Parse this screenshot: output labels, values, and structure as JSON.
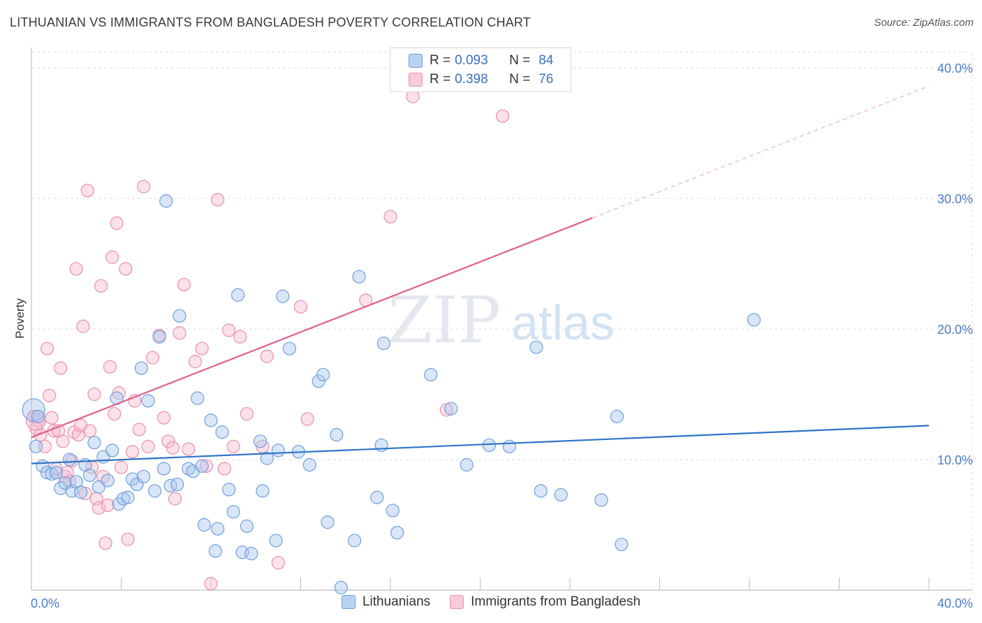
{
  "title": "LITHUANIAN VS IMMIGRANTS FROM BANGLADESH POVERTY CORRELATION CHART",
  "source": "Source: ZipAtlas.com",
  "watermark": {
    "zip": "ZIP",
    "atlas": "atlas"
  },
  "legend": {
    "rows": [
      {
        "r_label": "R =",
        "r_value": "0.093",
        "n_label": "N =",
        "n_value": "84"
      },
      {
        "r_label": "R =",
        "r_value": "0.398",
        "n_label": "N =",
        "n_value": "76"
      }
    ]
  },
  "bottom_legend": [
    "Lithuanians",
    "Immigrants from Bangladesh"
  ],
  "colors": {
    "blue_fill": "#a8c8ef",
    "blue_stroke": "#6f9fd8",
    "blue_line": "#2f74c8",
    "pink_fill": "#f6bcd0",
    "pink_stroke": "#e890ae",
    "pink_line": "#e0608a",
    "grid": "#dcdcdc",
    "tick_text": "#4a7cc9"
  },
  "chart_data": {
    "type": "scatter",
    "title": "LITHUANIAN VS IMMIGRANTS FROM BANGLADESH POVERTY CORRELATION CHART",
    "xlabel": "",
    "ylabel": "Poverty",
    "xlim": [
      0,
      40
    ],
    "ylim": [
      0,
      40
    ],
    "x_tick_labels": [
      "0.0%",
      "40.0%"
    ],
    "y_ticks": [
      10,
      20,
      30,
      40
    ],
    "y_tick_labels": [
      "10.0%",
      "20.0%",
      "30.0%",
      "40.0%"
    ],
    "grid": true,
    "series": [
      {
        "name": "Lithuanians",
        "r": 0.093,
        "n": 84,
        "trend": {
          "x0": 0,
          "y0": 9.7,
          "x1": 40,
          "y1": 12.6
        },
        "points": [
          [
            0.1,
            13.8
          ],
          [
            0.2,
            11.0
          ],
          [
            0.5,
            9.5
          ],
          [
            0.7,
            9.0
          ],
          [
            0.9,
            8.9
          ],
          [
            1.1,
            9.0
          ],
          [
            1.3,
            7.8
          ],
          [
            1.5,
            8.2
          ],
          [
            1.7,
            10.0
          ],
          [
            1.8,
            7.6
          ],
          [
            2.0,
            8.3
          ],
          [
            2.2,
            7.5
          ],
          [
            2.4,
            9.6
          ],
          [
            2.6,
            8.8
          ],
          [
            2.8,
            11.3
          ],
          [
            3.0,
            7.9
          ],
          [
            3.2,
            10.2
          ],
          [
            3.4,
            8.4
          ],
          [
            3.6,
            10.7
          ],
          [
            3.8,
            14.7
          ],
          [
            3.9,
            6.6
          ],
          [
            4.1,
            7.0
          ],
          [
            4.3,
            7.1
          ],
          [
            4.5,
            8.5
          ],
          [
            4.7,
            8.1
          ],
          [
            4.9,
            17.0
          ],
          [
            5.0,
            8.7
          ],
          [
            5.2,
            14.5
          ],
          [
            5.5,
            7.6
          ],
          [
            5.7,
            19.4
          ],
          [
            5.9,
            9.3
          ],
          [
            6.0,
            29.8
          ],
          [
            6.2,
            8.0
          ],
          [
            6.5,
            8.1
          ],
          [
            6.6,
            21.0
          ],
          [
            7.0,
            9.3
          ],
          [
            7.2,
            9.1
          ],
          [
            7.4,
            14.7
          ],
          [
            7.6,
            9.5
          ],
          [
            7.7,
            5.0
          ],
          [
            8.0,
            13.0
          ],
          [
            8.2,
            3.0
          ],
          [
            8.3,
            4.7
          ],
          [
            8.5,
            12.1
          ],
          [
            8.8,
            7.7
          ],
          [
            9.0,
            6.0
          ],
          [
            9.2,
            22.6
          ],
          [
            9.4,
            2.9
          ],
          [
            9.6,
            4.9
          ],
          [
            9.8,
            2.8
          ],
          [
            10.2,
            11.4
          ],
          [
            10.3,
            7.6
          ],
          [
            10.5,
            10.1
          ],
          [
            10.9,
            3.8
          ],
          [
            11.0,
            10.7
          ],
          [
            11.2,
            22.5
          ],
          [
            11.5,
            18.5
          ],
          [
            11.9,
            10.6
          ],
          [
            12.4,
            9.6
          ],
          [
            12.8,
            16.0
          ],
          [
            13.0,
            16.5
          ],
          [
            13.2,
            5.2
          ],
          [
            13.6,
            11.9
          ],
          [
            13.8,
            0.2
          ],
          [
            14.4,
            3.8
          ],
          [
            14.6,
            24.0
          ],
          [
            15.4,
            7.1
          ],
          [
            15.6,
            11.1
          ],
          [
            15.7,
            18.9
          ],
          [
            16.1,
            6.1
          ],
          [
            16.3,
            4.4
          ],
          [
            17.8,
            16.5
          ],
          [
            18.7,
            13.9
          ],
          [
            19.4,
            9.6
          ],
          [
            20.4,
            11.1
          ],
          [
            21.3,
            11.0
          ],
          [
            22.5,
            18.6
          ],
          [
            22.7,
            7.6
          ],
          [
            23.6,
            7.3
          ],
          [
            25.4,
            6.9
          ],
          [
            26.1,
            13.3
          ],
          [
            26.3,
            3.5
          ],
          [
            32.2,
            20.7
          ],
          [
            0.3,
            13.3
          ]
        ]
      },
      {
        "name": "Immigrants from Bangladesh",
        "r": 0.398,
        "n": 76,
        "trend": {
          "x0": 0,
          "y0": 11.7,
          "x1": 25.0,
          "y1": 28.5,
          "dashed_to": {
            "x": 40,
            "y": 38.6
          }
        },
        "points": [
          [
            0.1,
            13.3
          ],
          [
            0.2,
            12.4
          ],
          [
            0.3,
            13.0
          ],
          [
            0.4,
            11.9
          ],
          [
            0.6,
            11.0
          ],
          [
            0.7,
            18.5
          ],
          [
            0.8,
            14.9
          ],
          [
            0.9,
            13.2
          ],
          [
            1.0,
            12.2
          ],
          [
            1.1,
            9.3
          ],
          [
            1.2,
            12.2
          ],
          [
            1.3,
            17.0
          ],
          [
            1.4,
            11.4
          ],
          [
            1.5,
            8.7
          ],
          [
            1.6,
            9.0
          ],
          [
            1.7,
            8.3
          ],
          [
            1.8,
            9.9
          ],
          [
            1.9,
            12.1
          ],
          [
            2.0,
            24.6
          ],
          [
            2.1,
            11.9
          ],
          [
            2.2,
            12.6
          ],
          [
            2.3,
            20.2
          ],
          [
            2.4,
            7.4
          ],
          [
            2.5,
            30.6
          ],
          [
            2.6,
            12.2
          ],
          [
            2.7,
            9.4
          ],
          [
            2.8,
            15.0
          ],
          [
            2.9,
            7.0
          ],
          [
            3.0,
            6.3
          ],
          [
            3.1,
            23.3
          ],
          [
            3.2,
            8.7
          ],
          [
            3.3,
            3.6
          ],
          [
            3.4,
            6.5
          ],
          [
            3.5,
            17.1
          ],
          [
            3.6,
            25.5
          ],
          [
            3.7,
            13.5
          ],
          [
            3.8,
            28.1
          ],
          [
            3.9,
            15.1
          ],
          [
            4.0,
            9.4
          ],
          [
            4.2,
            24.6
          ],
          [
            4.3,
            3.9
          ],
          [
            4.5,
            10.6
          ],
          [
            4.6,
            14.5
          ],
          [
            4.8,
            12.3
          ],
          [
            5.0,
            30.9
          ],
          [
            5.2,
            11.0
          ],
          [
            5.4,
            17.8
          ],
          [
            5.7,
            19.5
          ],
          [
            5.9,
            13.2
          ],
          [
            6.1,
            11.4
          ],
          [
            6.3,
            10.9
          ],
          [
            6.4,
            7.0
          ],
          [
            6.6,
            19.7
          ],
          [
            6.8,
            23.4
          ],
          [
            7.0,
            10.8
          ],
          [
            7.3,
            17.5
          ],
          [
            7.6,
            18.5
          ],
          [
            7.8,
            9.5
          ],
          [
            8.0,
            0.5
          ],
          [
            8.3,
            29.9
          ],
          [
            8.6,
            9.3
          ],
          [
            8.8,
            19.9
          ],
          [
            9.0,
            11.0
          ],
          [
            9.3,
            19.4
          ],
          [
            9.6,
            13.5
          ],
          [
            10.3,
            11.0
          ],
          [
            10.5,
            17.9
          ],
          [
            11.0,
            2.1
          ],
          [
            12.0,
            21.7
          ],
          [
            12.3,
            13.1
          ],
          [
            14.9,
            22.2
          ],
          [
            16.0,
            28.6
          ],
          [
            17.0,
            37.8
          ],
          [
            18.5,
            13.8
          ],
          [
            21.0,
            36.3
          ],
          [
            0.2,
            13.0
          ]
        ]
      }
    ]
  }
}
